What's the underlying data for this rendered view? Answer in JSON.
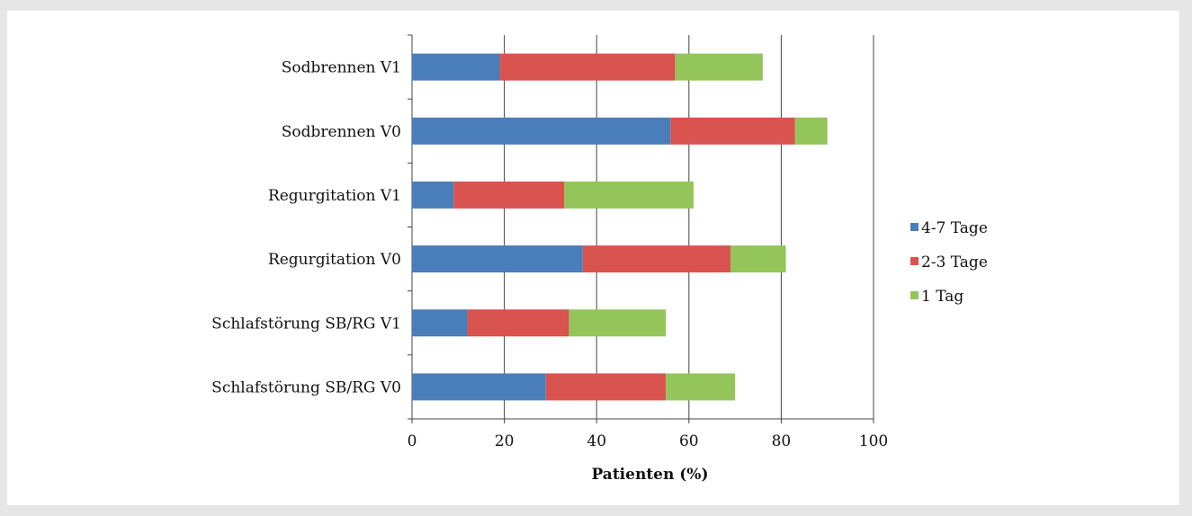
{
  "chart_data": {
    "type": "bar",
    "orientation": "horizontal",
    "stacked": true,
    "categories": [
      "Sodbrennen V1",
      "Sodbrennen V0",
      "Regurgitation V1",
      "Regurgitation V0",
      "Schlafstörung SB/RG V1",
      "Schlafstörung SB/RG V0"
    ],
    "series": [
      {
        "name": "4-7 Tage",
        "color": "#4a7ebb",
        "values": [
          19,
          56,
          9,
          37,
          12,
          29
        ]
      },
      {
        "name": "2-3 Tage",
        "color": "#d9534f",
        "values": [
          38,
          27,
          24,
          32,
          22,
          26
        ]
      },
      {
        "name": "1 Tag",
        "color": "#93c55a",
        "values": [
          19,
          7,
          28,
          12,
          21,
          15
        ]
      }
    ],
    "xlabel": "Patienten (%)",
    "ylabel": "",
    "xlim": [
      0,
      100
    ],
    "xticks": [
      "0",
      "20",
      "40",
      "60",
      "80",
      "100"
    ],
    "grid": "vertical",
    "legend": "right"
  }
}
